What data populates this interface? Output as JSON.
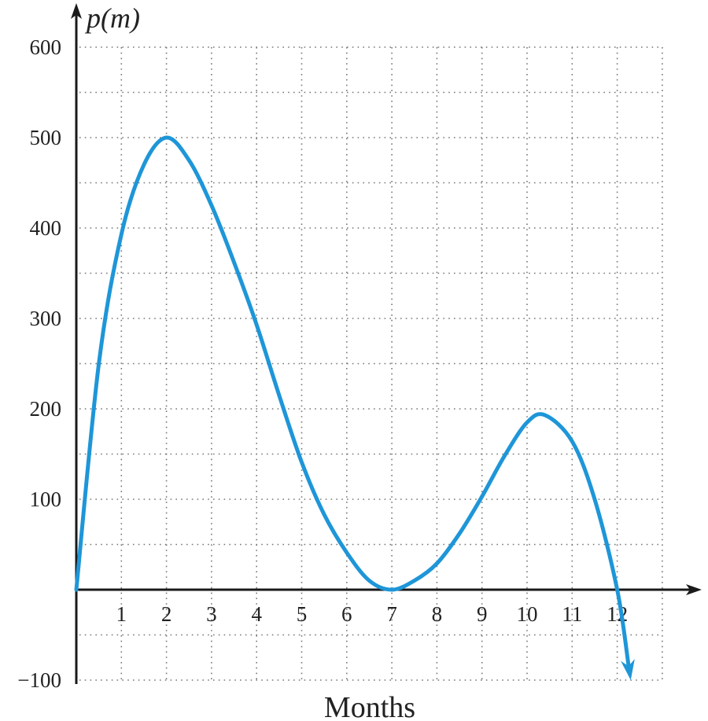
{
  "chart_data": {
    "type": "line",
    "title": "",
    "xlabel": "Months",
    "ylabel": "p(m)",
    "xlim": [
      0,
      13
    ],
    "ylim": [
      -100,
      600
    ],
    "grid": true,
    "grid_style": "dotted",
    "x_ticks": [
      1,
      2,
      3,
      4,
      5,
      6,
      7,
      8,
      9,
      10,
      11,
      12
    ],
    "y_ticks": [
      -100,
      100,
      200,
      300,
      400,
      500,
      600
    ],
    "y_tick_labels": [
      "−100",
      "100",
      "200",
      "300",
      "400",
      "500",
      "600"
    ],
    "x_grid_step": 1,
    "y_grid_step": 50,
    "series": [
      {
        "name": "p(m)",
        "color": "#1E96D8",
        "end_arrow": true,
        "x": [
          0,
          0.5,
          1,
          1.5,
          2,
          2.5,
          3,
          3.5,
          4,
          4.5,
          5,
          5.5,
          6,
          6.5,
          7,
          7.5,
          8,
          8.5,
          9,
          9.5,
          10,
          10.4,
          11,
          11.5,
          12,
          12.3
        ],
        "y": [
          0,
          250,
          393,
          470,
          500,
          475,
          425,
          362,
          293,
          215,
          141,
          83,
          41,
          10,
          0,
          10,
          29,
          62,
          103,
          148,
          185,
          193,
          164,
          100,
          0,
          -100
        ]
      }
    ]
  },
  "axis_colors": {
    "axis": "#1a1a1a",
    "grid": "#777777"
  }
}
